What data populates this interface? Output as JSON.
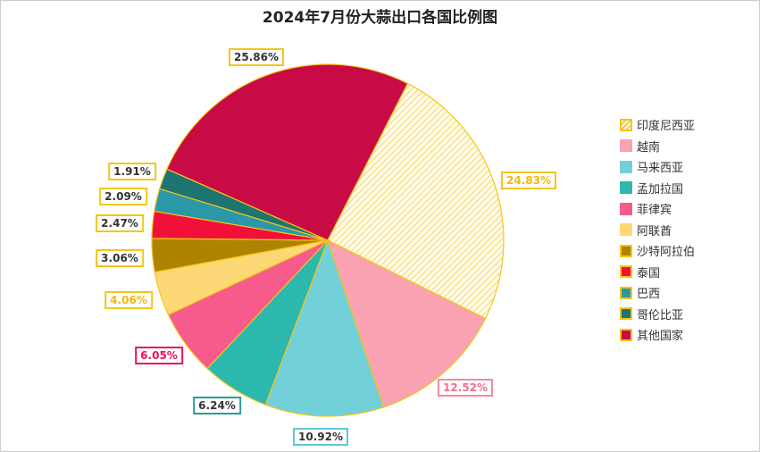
{
  "chart_data": {
    "type": "pie",
    "title": "2024年7月份大蒜出口各国比例图",
    "unit": "%",
    "legend_position": "right",
    "slices": [
      {
        "label": "印度尼西亚",
        "value": 24.83,
        "color": "#fff6c8",
        "pattern": "hatched",
        "text": "24.83%"
      },
      {
        "label": "越南",
        "value": 12.52,
        "color": "#f9a2b2",
        "text": "12.52%"
      },
      {
        "label": "马来西亚",
        "value": 10.92,
        "color": "#72d0d8",
        "text": "10.92%"
      },
      {
        "label": "孟加拉国",
        "value": 6.24,
        "color": "#2db8ad",
        "text": "6.24%"
      },
      {
        "label": "菲律宾",
        "value": 6.05,
        "color": "#f65b8c",
        "text": "6.05%"
      },
      {
        "label": "阿联酋",
        "value": 4.06,
        "color": "#fcd976",
        "text": "4.06%"
      },
      {
        "label": "沙特阿拉伯",
        "value": 3.06,
        "color": "#ad8300",
        "text": "3.06%"
      },
      {
        "label": "泰国",
        "value": 2.47,
        "color": "#f0103a",
        "text": "2.47%"
      },
      {
        "label": "巴西",
        "value": 2.09,
        "color": "#2b98a8",
        "text": "2.09%"
      },
      {
        "label": "哥伦比亚",
        "value": 1.91,
        "color": "#1e7470",
        "text": "1.91%"
      },
      {
        "label": "其他国家",
        "value": 25.86,
        "color": "#c80a45",
        "text": "25.86%"
      }
    ]
  }
}
